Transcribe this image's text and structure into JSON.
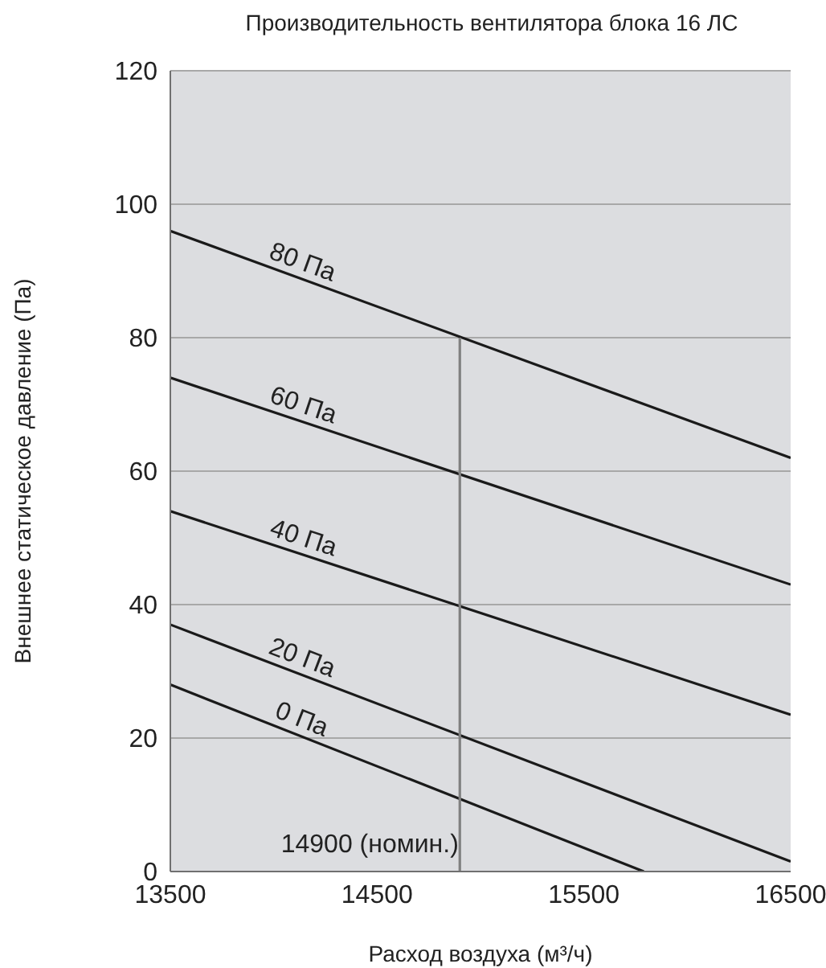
{
  "chart_data": {
    "type": "line",
    "title": "Производительность вентилятора блока 16 ЛС",
    "xlabel": "Расход воздуха (м³/ч)",
    "ylabel": "Внешнее статическое давление (Па)",
    "xlim": [
      13500,
      16500
    ],
    "xticks": [
      13500,
      14500,
      15500,
      16500
    ],
    "ylim": [
      0,
      120
    ],
    "yticks": [
      0,
      20,
      40,
      60,
      80,
      100,
      120
    ],
    "grid": "y",
    "marker": "none",
    "line_style": "solid",
    "legend": false,
    "series": [
      {
        "name": "80 Па",
        "color": "#1a1a1a",
        "x": [
          13500,
          16500
        ],
        "values": [
          96,
          62
        ]
      },
      {
        "name": "60 Па",
        "color": "#1a1a1a",
        "x": [
          13500,
          16500
        ],
        "values": [
          74,
          43
        ]
      },
      {
        "name": "40 Па",
        "color": "#1a1a1a",
        "x": [
          13500,
          16500
        ],
        "values": [
          54,
          23.5
        ]
      },
      {
        "name": "20 Па",
        "color": "#1a1a1a",
        "x": [
          13500,
          16500
        ],
        "values": [
          37,
          1.5
        ]
      },
      {
        "name": "0 Па",
        "color": "#1a1a1a",
        "x": [
          13500,
          15790
        ],
        "values": [
          28,
          0
        ]
      },
      {
        "color": "#808080",
        "x": [
          14900,
          14900
        ],
        "values": [
          0,
          80
        ]
      }
    ],
    "annotations": [
      {
        "text": "14900 (номин.)",
        "x": 14900,
        "y": 0
      }
    ]
  }
}
